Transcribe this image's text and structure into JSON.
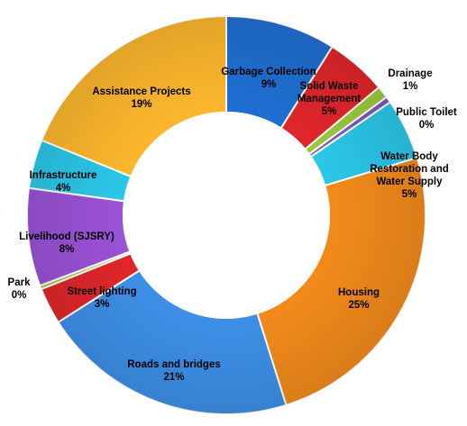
{
  "chart_data": {
    "type": "pie",
    "variant": "doughnut",
    "title": "",
    "start_angle_deg": 0,
    "direction": "clockwise",
    "slices": [
      {
        "label": "Garbage Collection",
        "value_label": "9%",
        "value": 9,
        "color": "#1f6fd1"
      },
      {
        "label": "Solid Waste Management",
        "value_label": "5%",
        "value": 5,
        "color": "#e0262a"
      },
      {
        "label": "Drainage",
        "value_label": "1%",
        "value": 1,
        "color": "#9bc93b"
      },
      {
        "label": "Public Toilet",
        "value_label": "0%",
        "value": 0.5,
        "color": "#7e57c2"
      },
      {
        "label": "Water Body Restoration and Water Supply",
        "value_label": "5%",
        "value": 5,
        "color": "#2bc6e8"
      },
      {
        "label": "Housing",
        "value_label": "25%",
        "value": 25,
        "color": "#f28a1b"
      },
      {
        "label": "Roads and bridges",
        "value_label": "21%",
        "value": 21,
        "color": "#3d8fe6"
      },
      {
        "label": "Street lighting",
        "value_label": "3%",
        "value": 3,
        "color": "#e0262a"
      },
      {
        "label": "Park",
        "value_label": "0%",
        "value": 0.3,
        "color": "#9bc93b"
      },
      {
        "label": "Livelihood (SJSRY)",
        "value_label": "8%",
        "value": 8,
        "color": "#9a52d6"
      },
      {
        "label": "Infrastructure",
        "value_label": "4%",
        "value": 4,
        "color": "#2bc6e8"
      },
      {
        "label": "Assistance Projects",
        "value_label": "19%",
        "value": 19,
        "color": "#fbb62c"
      }
    ]
  }
}
